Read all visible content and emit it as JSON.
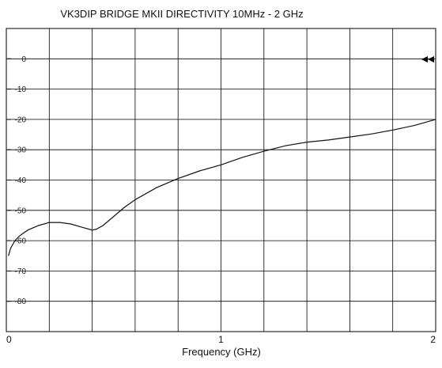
{
  "chart_data": {
    "type": "line",
    "title": "VK3DIP BRIDGE MKII DIRECTIVITY 10MHz - 2 GHz",
    "xlabel": "Frequency (GHz)",
    "ylabel": "",
    "xlim": [
      0,
      2
    ],
    "ylim": [
      -90,
      10
    ],
    "grid": true,
    "x_ticks": [
      "0",
      "1",
      "2"
    ],
    "y_ticks": [
      "0",
      "-10",
      "-20",
      "-30",
      "-40",
      "-50",
      "-60",
      "-70",
      "-80"
    ],
    "series": [
      {
        "x": [
          0.01,
          0.02,
          0.04,
          0.06,
          0.08,
          0.1,
          0.15,
          0.2,
          0.25,
          0.3,
          0.35,
          0.4,
          0.42,
          0.45,
          0.5,
          0.55,
          0.6,
          0.7,
          0.8,
          0.9,
          1.0,
          1.1,
          1.2,
          1.3,
          1.4,
          1.5,
          1.6,
          1.7,
          1.8,
          1.9,
          2.0
        ],
        "y": [
          -65,
          -62.5,
          -60,
          -58.5,
          -57.5,
          -56.5,
          -55,
          -54,
          -54,
          -54.5,
          -55.5,
          -56.5,
          -56.2,
          -55,
          -52,
          -49,
          -46.5,
          -42.5,
          -39.5,
          -37,
          -35,
          -32.5,
          -30.5,
          -28.7,
          -27.5,
          -26.8,
          -25.8,
          -24.8,
          -23.5,
          -22,
          -20
        ]
      }
    ]
  },
  "style": {
    "line_color": "#111111",
    "grid_color": "#000000",
    "background": "#ffffff"
  }
}
